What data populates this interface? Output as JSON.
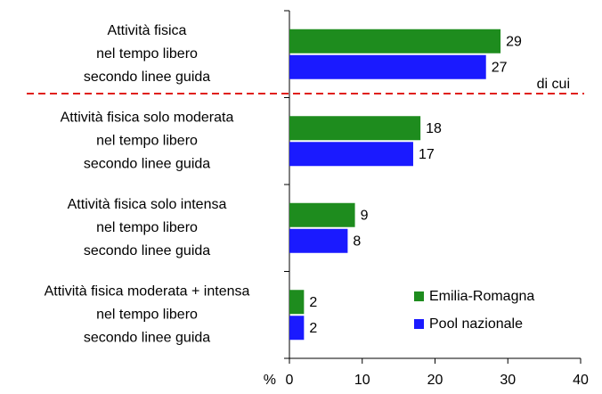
{
  "chart_data": {
    "type": "hbar",
    "categories": [
      "Attività fisica\nnel tempo libero\nsecondo linee guida",
      "Attività fisica solo moderata\nnel tempo libero\nsecondo linee guida",
      "Attività fisica solo intensa\nnel tempo libero\nsecondo linee guida",
      "Attività fisica moderata + intensa\nnel tempo libero\nsecondo linee guida"
    ],
    "series": [
      {
        "name": "Emilia-Romagna",
        "color": "#1e8c1e",
        "values": [
          29,
          18,
          9,
          2
        ]
      },
      {
        "name": "Pool nazionale",
        "color": "#1a1aff",
        "values": [
          27,
          17,
          8,
          2
        ]
      }
    ],
    "xlabel": "%",
    "xlim": [
      0,
      40
    ],
    "xticks": [
      0,
      10,
      20,
      30,
      40
    ],
    "annotation": "di cui",
    "legend": "lower right"
  }
}
